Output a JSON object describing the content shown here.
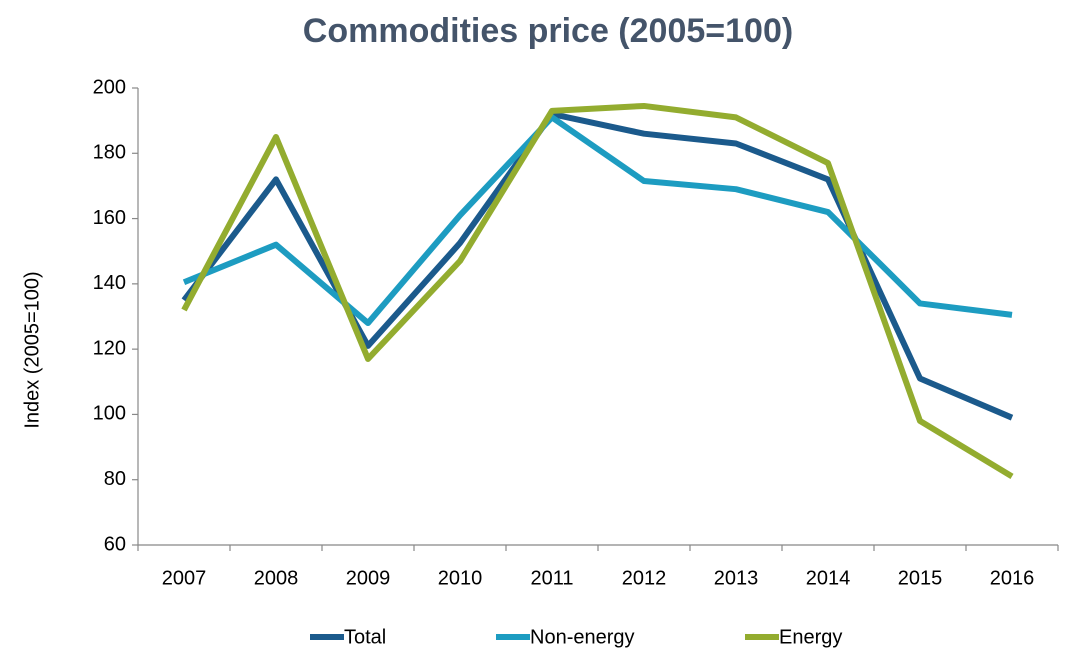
{
  "chart_data": {
    "type": "line",
    "title": "Commodities price (2005=100)",
    "y_label": "Index (2005=100)",
    "categories": [
      "2007",
      "2008",
      "2009",
      "2010",
      "2011",
      "2012",
      "2013",
      "2014",
      "2015",
      "2016"
    ],
    "series": [
      {
        "name": "Total",
        "color": "#1b5a8c",
        "values": [
          135,
          172,
          121,
          152.5,
          192,
          186,
          183,
          172,
          111,
          99
        ]
      },
      {
        "name": "Non-energy",
        "color": "#1d9cc1",
        "values": [
          140.5,
          152,
          128,
          161,
          191,
          171.5,
          169,
          162,
          134,
          130.5
        ]
      },
      {
        "name": "Energy",
        "color": "#93ac2f",
        "values": [
          132,
          185,
          117,
          147,
          193,
          194.5,
          191,
          177,
          98,
          81
        ]
      }
    ],
    "ylim": [
      60,
      200
    ],
    "yticks": [
      60,
      80,
      100,
      120,
      140,
      160,
      180,
      200
    ],
    "grid": false,
    "legend": "bottom"
  }
}
